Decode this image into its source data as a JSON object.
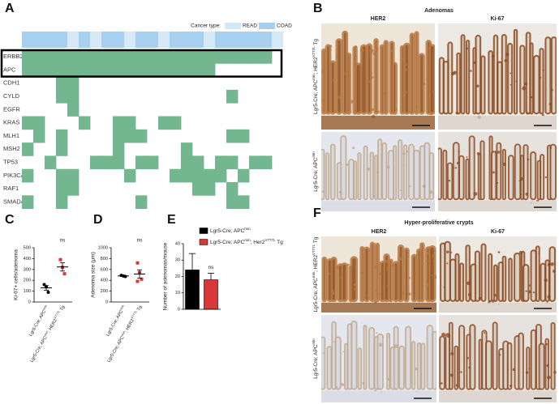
{
  "panel_labels": [
    "A",
    "B",
    "C",
    "D",
    "E",
    "F"
  ],
  "oncoprint": {
    "legend_title": "Cancer type:",
    "cancer_types": [
      {
        "name": "READ",
        "color": "#d5e8f6"
      },
      {
        "name": "COAD",
        "color": "#a7cff0"
      }
    ],
    "column_types": [
      1,
      1,
      1,
      1,
      0,
      1,
      0,
      1,
      1,
      0,
      1,
      1,
      0,
      1,
      1,
      1,
      0,
      1,
      1,
      1,
      1,
      1,
      0
    ],
    "alteration_color": "#72b78f",
    "highlighted_genes": [
      0,
      1
    ],
    "genes": [
      {
        "name": "ERBB2",
        "altered": [
          0,
          1,
          2,
          3,
          4,
          5,
          6,
          7,
          8,
          9,
          10,
          11,
          12,
          13,
          14,
          15,
          16,
          17,
          18,
          19,
          20,
          21
        ]
      },
      {
        "name": "APC",
        "altered": [
          0,
          1,
          2,
          3,
          4,
          5,
          6,
          7,
          8,
          9,
          10,
          11,
          12,
          13,
          14,
          15,
          16
        ]
      },
      {
        "name": "CDH1",
        "altered": [
          3,
          4
        ]
      },
      {
        "name": "CYLD",
        "altered": [
          3,
          4,
          18
        ]
      },
      {
        "name": "EGFR",
        "altered": [
          4
        ]
      },
      {
        "name": "KRAS",
        "altered": [
          0,
          1,
          5,
          8,
          9,
          12,
          13
        ]
      },
      {
        "name": "MLH1",
        "altered": [
          1,
          3,
          8,
          9,
          10,
          18,
          19
        ]
      },
      {
        "name": "MSH2",
        "altered": [
          0,
          3,
          8,
          14
        ]
      },
      {
        "name": "TP53",
        "altered": [
          2,
          6,
          7,
          8,
          10,
          11,
          14,
          15,
          17,
          18,
          20,
          21
        ]
      },
      {
        "name": "PIK3CA",
        "altered": [
          0,
          3,
          4,
          9,
          13,
          14,
          15,
          16,
          17,
          19
        ]
      },
      {
        "name": "RAF1",
        "altered": [
          3,
          4,
          15,
          16,
          18
        ]
      },
      {
        "name": "SMAD4",
        "altered": [
          0,
          3,
          10,
          18,
          19
        ]
      }
    ]
  },
  "histology": [
    {
      "title": "Adenomas",
      "columns": [
        "HER2",
        "Ki-67"
      ],
      "rows": [
        {
          "parts": [
            {
              "text": "Lgr5-Cre; APC"
            },
            {
              "text": "min",
              "sup": true
            },
            {
              "text": "; HER2"
            },
            {
              "text": "V777L",
              "sup": true
            },
            {
              "text": " Tg"
            }
          ]
        },
        {
          "parts": [
            {
              "text": "Lgr5-Cre; APC"
            },
            {
              "text": "min",
              "sup": true
            }
          ]
        }
      ]
    },
    {
      "title": "Hyper-proliferative crypts",
      "columns": [
        "HER2",
        "Ki-67"
      ],
      "rows": [
        {
          "parts": [
            {
              "text": "Lgr5-Cre; APC"
            },
            {
              "text": "min",
              "sup": true
            },
            {
              "text": "; HER2"
            },
            {
              "text": "V777L",
              "sup": true
            },
            {
              "text": " Tg"
            }
          ]
        },
        {
          "parts": [
            {
              "text": "Lgr5-Cre; APC"
            },
            {
              "text": "min",
              "sup": true
            }
          ]
        }
      ]
    }
  ],
  "chart_data": [
    {
      "type": "dotplot",
      "ylabel": "Ki-67+ cells/adenoma",
      "ylim": [
        0,
        500
      ],
      "yticks": [
        0,
        100,
        200,
        300,
        400,
        500
      ],
      "groups": [
        {
          "parts": [
            {
              "text": "Lgr5-Cre; APC"
            },
            {
              "text": "min",
              "sup": true
            }
          ],
          "color": "#000000",
          "marker": "circle",
          "values": [
            160,
            140,
            90
          ],
          "mean": 130,
          "sem": 21
        },
        {
          "parts": [
            {
              "text": "Lgr5-Cre; APC"
            },
            {
              "text": "min",
              "sup": true
            },
            {
              "text": "; HER2"
            },
            {
              "text": "V777L",
              "sup": true
            },
            {
              "text": " Tg"
            }
          ],
          "color": "#d9383a",
          "marker": "square",
          "values": [
            390,
            320,
            260
          ],
          "mean": 323,
          "sem": 38,
          "annotation": "ns"
        }
      ]
    },
    {
      "type": "dotplot",
      "ylabel": "Adenoma size (μm)",
      "ylim": [
        0,
        1000
      ],
      "yticks": [
        0,
        200,
        400,
        600,
        800,
        1000
      ],
      "groups": [
        {
          "parts": [
            {
              "text": "Lgr5-Cre; APC"
            },
            {
              "text": "min",
              "sup": true
            }
          ],
          "color": "#000000",
          "marker": "circle",
          "values": [
            490,
            480,
            470
          ],
          "mean": 480,
          "sem": 6
        },
        {
          "parts": [
            {
              "text": "Lgr5-Cre; APC"
            },
            {
              "text": "min",
              "sup": true
            },
            {
              "text": "; HER2"
            },
            {
              "text": "V777L",
              "sup": true
            },
            {
              "text": " Tg"
            }
          ],
          "color": "#d9383a",
          "marker": "square",
          "values": [
            720,
            540,
            420,
            380
          ],
          "mean": 515,
          "sem": 77,
          "annotation": "ns"
        }
      ]
    },
    {
      "type": "bar",
      "ylabel": "Number of adenomas/mouse",
      "ylim": [
        0,
        40
      ],
      "yticks": [
        0,
        10,
        20,
        30,
        40
      ],
      "series": [
        {
          "parts": [
            {
              "text": "Lgr5-Cre; APC"
            },
            {
              "text": "min",
              "sup": true
            }
          ],
          "color": "#000000",
          "value": 24,
          "error": 10
        },
        {
          "parts": [
            {
              "text": "Lgr5-Cre; APC"
            },
            {
              "text": "min",
              "sup": true
            },
            {
              "text": "; Her2"
            },
            {
              "text": "V777L",
              "sup": true
            },
            {
              "text": " Tg"
            }
          ],
          "color": "#d9383a",
          "value": 18,
          "error": 4,
          "annotation": "ns"
        }
      ]
    }
  ]
}
